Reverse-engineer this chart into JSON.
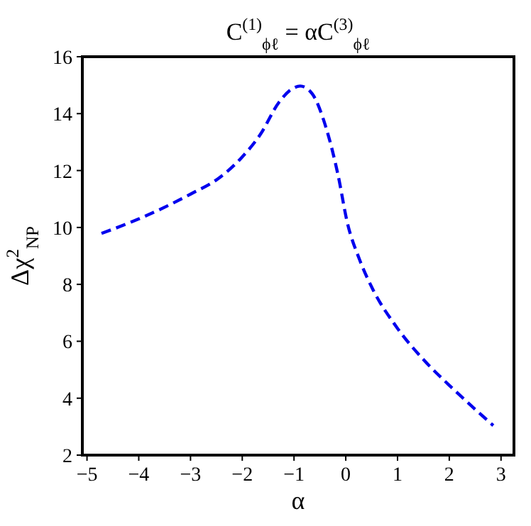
{
  "chart_data": {
    "type": "line",
    "title": "C$^{(1)}$$_{ϕℓ}$ = αC$^{(3)}$$_{ϕℓ}$",
    "xlabel": "α",
    "ylabel": "Δχ$^{2}$$_{NP}$",
    "xlim": [
      -5.09,
      3.25
    ],
    "ylim": [
      2,
      16
    ],
    "xticks": [
      {
        "value": -5,
        "label": "−5"
      },
      {
        "value": -4,
        "label": "−4"
      },
      {
        "value": -3,
        "label": "−3"
      },
      {
        "value": -2,
        "label": "−2"
      },
      {
        "value": -1,
        "label": "−1"
      },
      0,
      1,
      2,
      3
    ],
    "yticks": [
      2,
      4,
      6,
      8,
      10,
      12,
      14,
      16
    ],
    "grid": false,
    "line_style": "dashed",
    "marker": "none",
    "series": [
      {
        "color": "#0000ee",
        "x": [
          -4.72,
          -4.0,
          -2.99,
          -2.47,
          -2.02,
          -1.65,
          -1.29,
          -1.01,
          -0.88,
          -0.65,
          -0.38,
          -0.15,
          0.03,
          0.26,
          0.53,
          0.99,
          1.53,
          1.99,
          2.44,
          2.85
        ],
        "values": [
          9.79,
          10.3,
          11.18,
          11.71,
          12.44,
          13.27,
          14.4,
          14.9,
          14.97,
          14.7,
          13.5,
          11.85,
          10.17,
          8.9,
          7.8,
          6.48,
          5.3,
          4.47,
          3.71,
          3.04
        ]
      }
    ]
  }
}
